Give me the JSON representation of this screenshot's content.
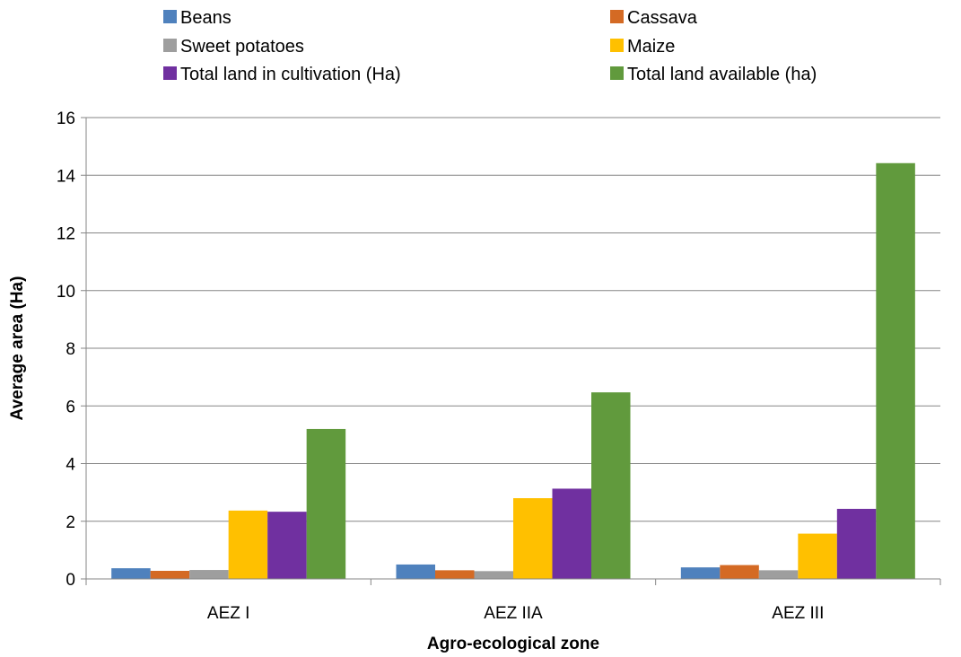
{
  "chart_data": {
    "type": "bar",
    "title": "",
    "xlabel": "Agro-ecological zone",
    "ylabel": "Average area (Ha)",
    "ylim": [
      0,
      16
    ],
    "yticks": [
      0,
      2,
      4,
      6,
      8,
      10,
      12,
      14,
      16
    ],
    "grid": "horizontal",
    "legend_position": "top",
    "categories": [
      "AEZ I",
      "AEZ IIA",
      "AEZ III"
    ],
    "series": [
      {
        "name": "Beans",
        "color": "#4F81BD",
        "values": [
          0.37,
          0.5,
          0.4
        ]
      },
      {
        "name": "Cassava",
        "color": "#D46A24",
        "values": [
          0.28,
          0.3,
          0.48
        ]
      },
      {
        "name": "Sweet potatoes",
        "color": "#9E9E9E",
        "values": [
          0.31,
          0.27,
          0.3
        ]
      },
      {
        "name": "Maize",
        "color": "#FFC000",
        "values": [
          2.37,
          2.8,
          1.57
        ]
      },
      {
        "name": "Total land in cultivation (Ha)",
        "color": "#7030A0",
        "values": [
          2.33,
          3.13,
          2.43
        ]
      },
      {
        "name": "Total land available (ha)",
        "color": "#619A3D",
        "values": [
          5.2,
          6.47,
          14.42
        ]
      }
    ]
  }
}
